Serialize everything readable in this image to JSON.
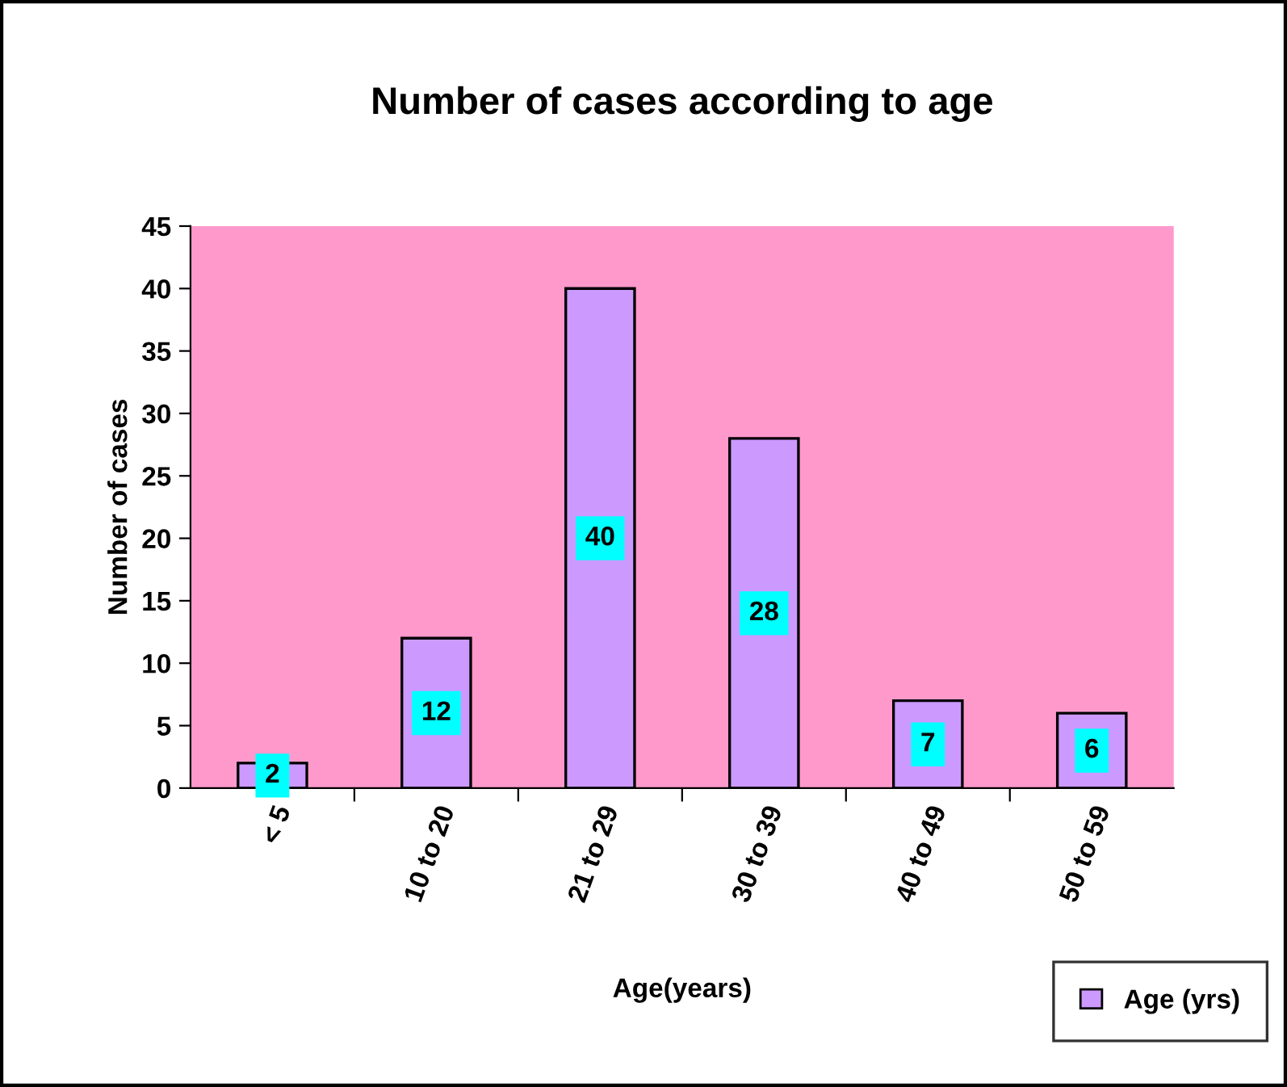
{
  "chart_data": {
    "type": "bar",
    "title": "Number of cases according to age",
    "xlabel": "Age(years)",
    "ylabel": "Number of cases",
    "categories": [
      "< 5",
      "10 to 20",
      "21 to 29",
      "30 to 39",
      "40 to 49",
      "50 to 59"
    ],
    "series": [
      {
        "name": "Age (yrs)",
        "color": "#cc99ff",
        "values": [
          2,
          12,
          40,
          28,
          7,
          6
        ]
      }
    ],
    "ylim": [
      0,
      45
    ],
    "yticks": [
      0,
      5,
      10,
      15,
      20,
      25,
      30,
      35,
      40,
      45
    ],
    "grid": false,
    "legend": "bottom right",
    "data_labels": true
  }
}
